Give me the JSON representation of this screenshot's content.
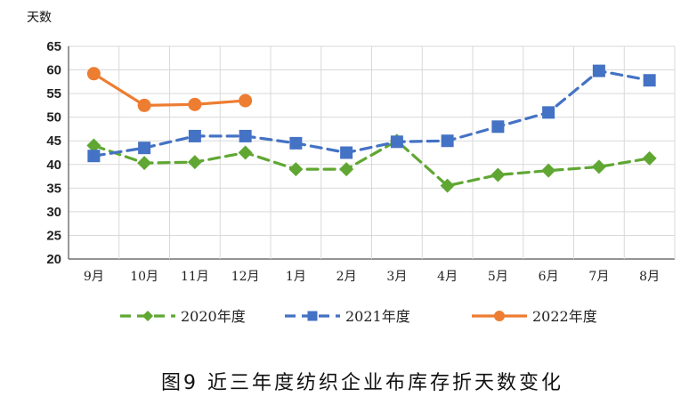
{
  "chart_data": {
    "type": "line",
    "title": "",
    "caption": "图9  近三年度纺织企业布库存折天数变化",
    "xlabel": "",
    "ylabel": "天数",
    "ylim": [
      20,
      65
    ],
    "yticks": [
      20,
      25,
      30,
      35,
      40,
      45,
      50,
      55,
      60,
      65
    ],
    "grid": true,
    "legend_position": "bottom",
    "categories": [
      "9月",
      "10月",
      "11月",
      "12月",
      "1月",
      "2月",
      "3月",
      "4月",
      "5月",
      "6月",
      "7月",
      "8月"
    ],
    "series": [
      {
        "name": "2020年度",
        "color": "#5fa732",
        "line_style": "dashed",
        "marker": "diamond",
        "values": [
          44,
          40.3,
          40.5,
          42.5,
          39,
          39,
          45,
          35.5,
          37.8,
          38.7,
          39.5,
          41.3
        ]
      },
      {
        "name": "2021年度",
        "color": "#4472c4",
        "line_style": "dashed",
        "marker": "square",
        "values": [
          41.8,
          43.5,
          46,
          46,
          44.5,
          42.5,
          44.8,
          45,
          48,
          51,
          59.8,
          57.8
        ]
      },
      {
        "name": "2022年度",
        "color": "#ed7d31",
        "line_style": "solid",
        "marker": "circle",
        "values": [
          59.2,
          52.5,
          52.7,
          53.5,
          null,
          null,
          null,
          null,
          null,
          null,
          null,
          null
        ]
      }
    ]
  }
}
